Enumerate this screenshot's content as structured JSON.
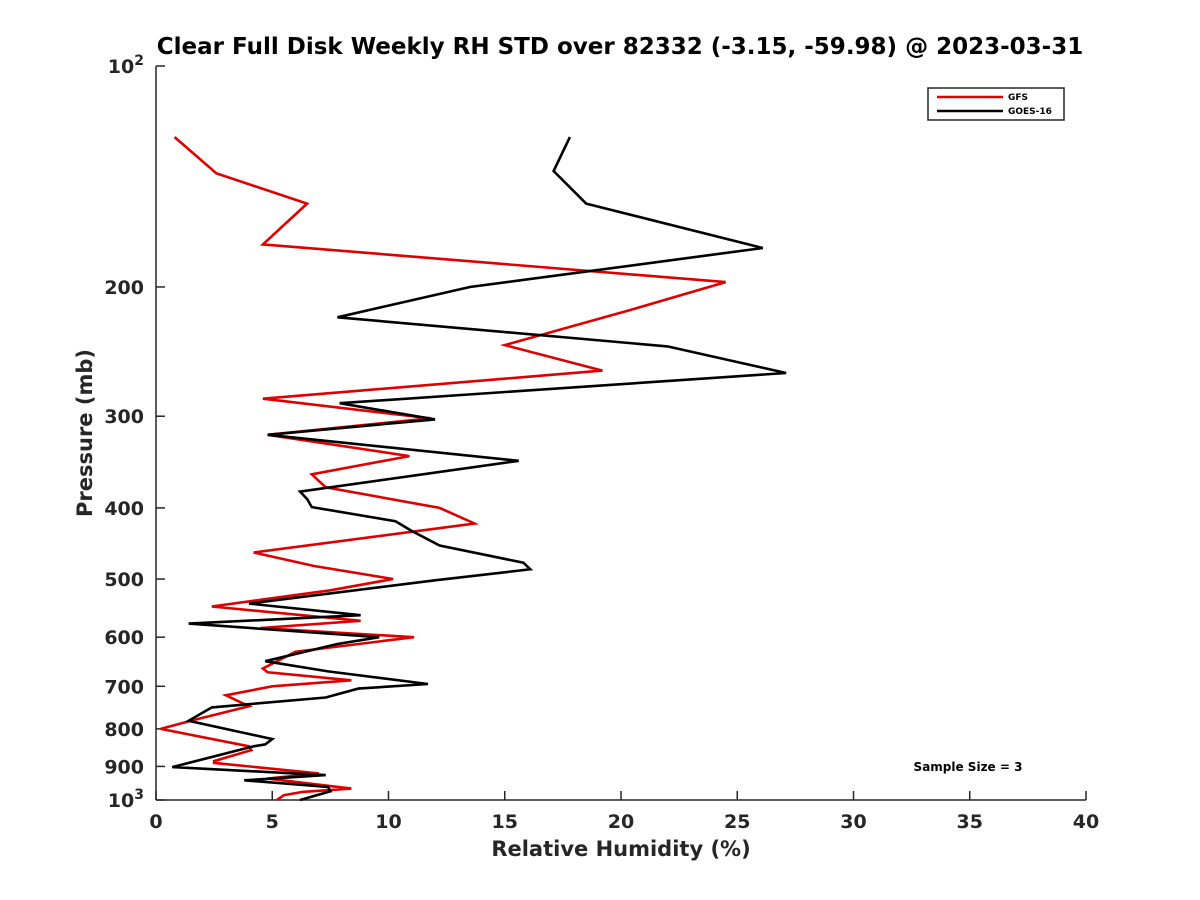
{
  "chart_data": {
    "type": "line",
    "title": "Clear Full Disk Weekly RH STD over 82332 (-3.15, -59.98) @ 2023-03-31",
    "xlabel": "Relative Humidity (%)",
    "ylabel": "Pressure (mb)",
    "xlim": [
      0,
      40
    ],
    "ylim": [
      100,
      1000
    ],
    "y_scale": "log",
    "y_reversed": true,
    "x_ticks": [
      0,
      5,
      10,
      15,
      20,
      25,
      30,
      35,
      40
    ],
    "y_ticks": [
      200,
      300,
      400,
      500,
      600,
      700,
      800,
      900
    ],
    "y_tick_labels": {
      "top": {
        "base": "10",
        "exp": "2"
      },
      "bottom": {
        "base": "10",
        "exp": "3"
      }
    },
    "legend_position": "top-right",
    "grid": false,
    "annotation": "Sample Size = 3",
    "series": [
      {
        "name": "GFS",
        "color": "#e00000",
        "points": [
          [
            0.8,
            125
          ],
          [
            2.6,
            140
          ],
          [
            6.5,
            154
          ],
          [
            4.6,
            175
          ],
          [
            24.5,
            197
          ],
          [
            20.4,
            215
          ],
          [
            15.0,
            240
          ],
          [
            19.2,
            260
          ],
          [
            4.6,
            284
          ],
          [
            11.8,
            302
          ],
          [
            4.8,
            318
          ],
          [
            10.9,
            340
          ],
          [
            6.7,
            360
          ],
          [
            7.3,
            375
          ],
          [
            12.2,
            400
          ],
          [
            13.7,
            420
          ],
          [
            4.2,
            460
          ],
          [
            6.8,
            480
          ],
          [
            10.2,
            500
          ],
          [
            7.5,
            518
          ],
          [
            2.4,
            545
          ],
          [
            8.8,
            570
          ],
          [
            4.5,
            583
          ],
          [
            11.1,
            600
          ],
          [
            6.0,
            628
          ],
          [
            4.6,
            662
          ],
          [
            4.8,
            670
          ],
          [
            8.4,
            687
          ],
          [
            5.0,
            700
          ],
          [
            3.0,
            720
          ],
          [
            4.0,
            745
          ],
          [
            1.5,
            780
          ],
          [
            0.2,
            800
          ],
          [
            4.0,
            845
          ],
          [
            4.1,
            855
          ],
          [
            2.5,
            885
          ],
          [
            2.5,
            890
          ],
          [
            7.0,
            920
          ],
          [
            4.8,
            935
          ],
          [
            8.4,
            965
          ],
          [
            6.3,
            975
          ],
          [
            5.5,
            985
          ],
          [
            5.2,
            1000
          ]
        ]
      },
      {
        "name": "GOES-16",
        "color": "#000000",
        "points": [
          [
            17.8,
            125
          ],
          [
            17.1,
            139
          ],
          [
            18.5,
            154
          ],
          [
            26.1,
            177
          ],
          [
            13.5,
            200
          ],
          [
            7.8,
            220
          ],
          [
            22.0,
            241
          ],
          [
            27.1,
            262
          ],
          [
            7.9,
            288
          ],
          [
            12.0,
            303
          ],
          [
            4.8,
            318
          ],
          [
            15.6,
            345
          ],
          [
            6.2,
            380
          ],
          [
            6.5,
            389
          ],
          [
            6.7,
            399
          ],
          [
            10.3,
            417
          ],
          [
            11.0,
            430
          ],
          [
            12.2,
            450
          ],
          [
            15.8,
            475
          ],
          [
            16.1,
            485
          ],
          [
            12.0,
            502
          ],
          [
            4.0,
            540
          ],
          [
            8.8,
            560
          ],
          [
            1.4,
            575
          ],
          [
            9.6,
            600
          ],
          [
            7.8,
            613
          ],
          [
            4.7,
            647
          ],
          [
            7.4,
            668
          ],
          [
            11.7,
            695
          ],
          [
            8.7,
            705
          ],
          [
            7.3,
            725
          ],
          [
            2.4,
            748
          ],
          [
            1.4,
            780
          ],
          [
            5.0,
            826
          ],
          [
            4.7,
            840
          ],
          [
            4.2,
            845
          ],
          [
            0.7,
            902
          ],
          [
            7.3,
            925
          ],
          [
            3.8,
            940
          ],
          [
            7.4,
            960
          ],
          [
            7.5,
            973
          ],
          [
            6.2,
            1000
          ]
        ]
      }
    ]
  }
}
